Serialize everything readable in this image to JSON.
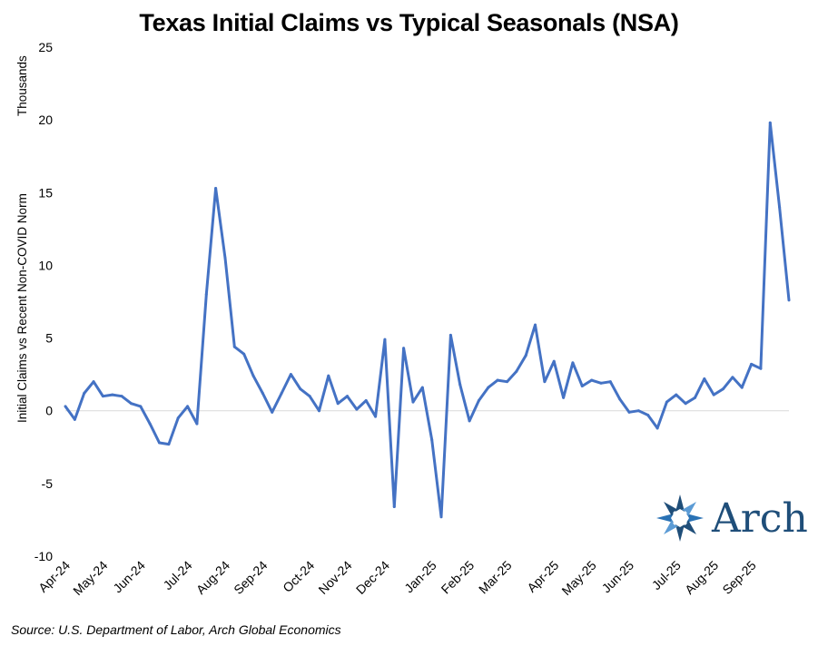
{
  "chart_data": {
    "type": "line",
    "title": "Texas Initial Claims vs Typical Seasonals (NSA)",
    "ylabel": "Initial Claims vs Recent Non-COVID Norm",
    "yunits": "Thousands",
    "ylim": [
      -10,
      25
    ],
    "yticks": [
      -10,
      -5,
      0,
      5,
      10,
      15,
      20,
      25
    ],
    "ytick_labels": [
      "-10",
      "-5",
      "0",
      "5",
      "10",
      "15",
      "20",
      "25"
    ],
    "xtick_labels": [
      "Apr-24",
      "May-24",
      "Jun-24",
      "Jul-24",
      "Aug-24",
      "Sep-24",
      "Oct-24",
      "Nov-24",
      "Dec-24",
      "Jan-25",
      "Feb-25",
      "Mar-25",
      "Apr-25",
      "May-25",
      "Jun-25",
      "Jul-25",
      "Aug-25",
      "Sep-25"
    ],
    "xtick_index": [
      0,
      4,
      8,
      13,
      17,
      21,
      26,
      30,
      34,
      39,
      43,
      47,
      52,
      56,
      60,
      65,
      69,
      73
    ],
    "series": [
      {
        "name": "Texas Initial Claims vs Typical Seasonals",
        "color": "#4472c4",
        "values": [
          0.3,
          -0.6,
          1.2,
          2.0,
          1.0,
          1.1,
          1.0,
          0.5,
          0.3,
          -0.9,
          -2.2,
          -2.3,
          -0.5,
          0.3,
          -0.9,
          8.0,
          15.3,
          10.5,
          4.4,
          3.9,
          2.4,
          1.2,
          -0.1,
          1.2,
          2.5,
          1.5,
          1.0,
          0.0,
          2.4,
          0.5,
          1.0,
          0.1,
          0.7,
          -0.4,
          4.9,
          -6.6,
          4.3,
          0.6,
          1.6,
          -2.0,
          -7.3,
          5.2,
          1.8,
          -0.7,
          0.7,
          1.6,
          2.1,
          2.0,
          2.7,
          3.8,
          5.9,
          2.0,
          3.4,
          0.9,
          3.3,
          1.7,
          2.1,
          1.9,
          2.0,
          0.8,
          -0.1,
          0.0,
          -0.3,
          -1.2,
          0.6,
          1.1,
          0.5,
          0.9,
          2.2,
          1.1,
          1.5,
          2.3,
          1.6,
          3.2,
          2.9,
          19.8,
          14.0,
          7.6
        ]
      }
    ]
  },
  "source": "Source: U.S. Department of Labor, Arch Global Economics",
  "logo": {
    "text": "Arch",
    "color": "#1f4e79"
  }
}
